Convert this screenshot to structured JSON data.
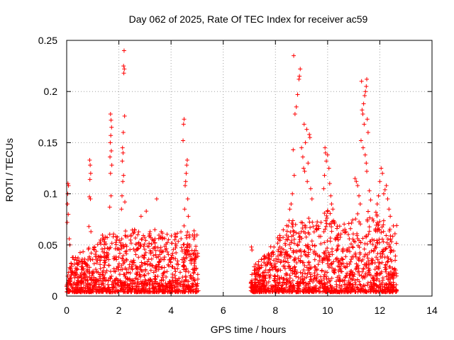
{
  "chart_data": {
    "type": "scatter",
    "title": "Day 062 of 2025, Rate Of TEC Index for receiver ac59",
    "xlabel": "GPS time / hours",
    "ylabel": "ROTI / TECUs",
    "xlim": [
      0,
      14
    ],
    "ylim": [
      0,
      0.25
    ],
    "xticks": [
      0,
      2,
      4,
      6,
      8,
      10,
      12,
      14
    ],
    "yticks": [
      0,
      0.05,
      0.1,
      0.15,
      0.2,
      0.25
    ],
    "xtick_labels": [
      "0",
      "2",
      "4",
      "6",
      "8",
      "10",
      "12",
      "14"
    ],
    "ytick_labels": [
      "0",
      "0.05",
      "0.1",
      "0.15",
      "0.2",
      "0.25"
    ],
    "grid": true,
    "marker": "+",
    "color": "#ff0000",
    "series": [
      {
        "name": "ROTI",
        "points": [
          [
            0.05,
            0.11
          ],
          [
            0.07,
            0.108
          ],
          [
            0.04,
            0.1
          ],
          [
            0.03,
            0.09
          ],
          [
            0.06,
            0.08
          ],
          [
            0.02,
            0.072
          ],
          [
            0.1,
            0.056
          ],
          [
            0.12,
            0.05
          ],
          [
            0.88,
            0.133
          ],
          [
            0.9,
            0.128
          ],
          [
            0.92,
            0.12
          ],
          [
            0.89,
            0.114
          ],
          [
            0.87,
            0.097
          ],
          [
            0.91,
            0.095
          ],
          [
            0.85,
            0.068
          ],
          [
            0.93,
            0.063
          ],
          [
            1.68,
            0.178
          ],
          [
            1.7,
            0.172
          ],
          [
            1.72,
            0.165
          ],
          [
            1.69,
            0.157
          ],
          [
            1.67,
            0.15
          ],
          [
            1.71,
            0.142
          ],
          [
            1.66,
            0.136
          ],
          [
            1.73,
            0.128
          ],
          [
            1.68,
            0.12
          ],
          [
            1.7,
            0.098
          ],
          [
            1.65,
            0.087
          ],
          [
            2.2,
            0.24
          ],
          [
            2.18,
            0.225
          ],
          [
            2.21,
            0.222
          ],
          [
            2.19,
            0.218
          ],
          [
            2.22,
            0.176
          ],
          [
            2.17,
            0.16
          ],
          [
            2.14,
            0.145
          ],
          [
            2.16,
            0.14
          ],
          [
            2.13,
            0.132
          ],
          [
            2.18,
            0.118
          ],
          [
            2.15,
            0.112
          ],
          [
            2.12,
            0.098
          ],
          [
            2.23,
            0.092
          ],
          [
            2.1,
            0.085
          ],
          [
            3.45,
            0.095
          ],
          [
            3.05,
            0.083
          ],
          [
            2.85,
            0.078
          ],
          [
            4.5,
            0.173
          ],
          [
            4.48,
            0.168
          ],
          [
            4.46,
            0.152
          ],
          [
            4.62,
            0.133
          ],
          [
            4.6,
            0.128
          ],
          [
            4.58,
            0.12
          ],
          [
            4.56,
            0.112
          ],
          [
            4.54,
            0.108
          ],
          [
            4.64,
            0.095
          ],
          [
            4.52,
            0.085
          ],
          [
            4.66,
            0.078
          ],
          [
            7.08,
            0.048
          ],
          [
            7.1,
            0.045
          ],
          [
            8.7,
            0.235
          ],
          [
            8.95,
            0.222
          ],
          [
            8.92,
            0.215
          ],
          [
            8.9,
            0.212
          ],
          [
            8.85,
            0.197
          ],
          [
            8.8,
            0.185
          ],
          [
            8.75,
            0.178
          ],
          [
            9.1,
            0.168
          ],
          [
            9.2,
            0.163
          ],
          [
            9.3,
            0.158
          ],
          [
            9.32,
            0.155
          ],
          [
            9.15,
            0.15
          ],
          [
            9.0,
            0.145
          ],
          [
            8.68,
            0.143
          ],
          [
            9.05,
            0.136
          ],
          [
            9.25,
            0.13
          ],
          [
            9.08,
            0.125
          ],
          [
            9.12,
            0.122
          ],
          [
            8.72,
            0.118
          ],
          [
            9.22,
            0.112
          ],
          [
            9.35,
            0.105
          ],
          [
            8.65,
            0.1
          ],
          [
            9.4,
            0.095
          ],
          [
            8.6,
            0.09
          ],
          [
            8.55,
            0.085
          ],
          [
            9.9,
            0.145
          ],
          [
            9.92,
            0.14
          ],
          [
            10.0,
            0.138
          ],
          [
            9.95,
            0.132
          ],
          [
            10.05,
            0.125
          ],
          [
            9.88,
            0.118
          ],
          [
            10.08,
            0.11
          ],
          [
            9.85,
            0.105
          ],
          [
            10.12,
            0.098
          ],
          [
            10.15,
            0.09
          ],
          [
            10.2,
            0.085
          ],
          [
            11.3,
            0.21
          ],
          [
            11.5,
            0.212
          ],
          [
            11.48,
            0.205
          ],
          [
            11.45,
            0.2
          ],
          [
            11.42,
            0.196
          ],
          [
            11.38,
            0.188
          ],
          [
            11.32,
            0.182
          ],
          [
            11.35,
            0.178
          ],
          [
            11.52,
            0.173
          ],
          [
            11.4,
            0.168
          ],
          [
            11.55,
            0.16
          ],
          [
            11.28,
            0.152
          ],
          [
            11.36,
            0.145
          ],
          [
            11.44,
            0.138
          ],
          [
            11.48,
            0.13
          ],
          [
            11.5,
            0.122
          ],
          [
            11.05,
            0.115
          ],
          [
            11.1,
            0.112
          ],
          [
            11.15,
            0.108
          ],
          [
            11.6,
            0.103
          ],
          [
            11.2,
            0.098
          ],
          [
            11.65,
            0.094
          ],
          [
            11.25,
            0.09
          ],
          [
            12.05,
            0.125
          ],
          [
            12.1,
            0.12
          ],
          [
            12.0,
            0.112
          ],
          [
            12.25,
            0.108
          ],
          [
            12.2,
            0.104
          ],
          [
            12.15,
            0.1
          ],
          [
            11.95,
            0.098
          ],
          [
            12.3,
            0.095
          ],
          [
            11.9,
            0.09
          ],
          [
            12.35,
            0.085
          ],
          [
            11.85,
            0.082
          ],
          [
            12.4,
            0.078
          ]
        ]
      }
    ],
    "segments": [
      {
        "start": 0.0,
        "end": 5.05,
        "density": 5
      },
      {
        "start": 7.05,
        "end": 12.65,
        "density": 5
      }
    ],
    "segment_profile": [
      {
        "x": 0.0,
        "y": 0.03
      },
      {
        "x": 0.5,
        "y": 0.04
      },
      {
        "x": 1.0,
        "y": 0.045
      },
      {
        "x": 1.5,
        "y": 0.06
      },
      {
        "x": 2.0,
        "y": 0.058
      },
      {
        "x": 2.5,
        "y": 0.062
      },
      {
        "x": 3.0,
        "y": 0.058
      },
      {
        "x": 3.5,
        "y": 0.062
      },
      {
        "x": 4.0,
        "y": 0.055
      },
      {
        "x": 4.5,
        "y": 0.065
      },
      {
        "x": 5.0,
        "y": 0.06
      },
      {
        "x": 7.0,
        "y": 0.02
      },
      {
        "x": 7.5,
        "y": 0.035
      },
      {
        "x": 8.0,
        "y": 0.05
      },
      {
        "x": 8.5,
        "y": 0.07
      },
      {
        "x": 9.0,
        "y": 0.075
      },
      {
        "x": 9.5,
        "y": 0.07
      },
      {
        "x": 10.0,
        "y": 0.08
      },
      {
        "x": 10.5,
        "y": 0.065
      },
      {
        "x": 11.0,
        "y": 0.075
      },
      {
        "x": 11.5,
        "y": 0.08
      },
      {
        "x": 12.0,
        "y": 0.075
      },
      {
        "x": 12.5,
        "y": 0.06
      }
    ]
  }
}
